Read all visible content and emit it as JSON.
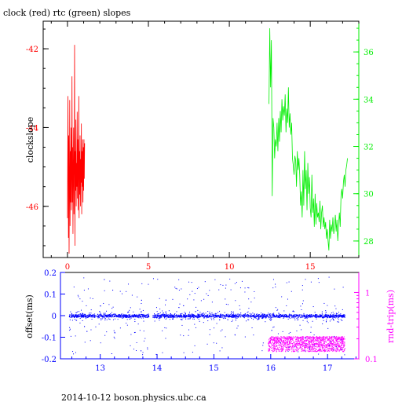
{
  "chart_data": [
    {
      "type": "line",
      "title": "clock (red) rtc (green) slopes",
      "ylabel": "clockslope",
      "xlim": [
        -1.5,
        18
      ],
      "ylim_left": [
        -47.3,
        -41.3
      ],
      "ylim_right": [
        27.3,
        37.3
      ],
      "x_ticks": [
        0,
        5,
        10,
        15
      ],
      "y_ticks_left": [
        -46,
        -44,
        -42
      ],
      "y_ticks_right": [
        28,
        30,
        32,
        34,
        36
      ],
      "colors": {
        "clock": "#ff0000",
        "rtc": "#00ee00",
        "axes": "#000000",
        "right_axis": "#00ee00",
        "left_ticklabels": "#ff0000",
        "bottom_ticklabels": "#ff0000"
      },
      "series": [
        {
          "axis": "left",
          "color": "#ff0000",
          "x": [
            0.0,
            0.03,
            0.06,
            0.08,
            0.1,
            0.12,
            0.14,
            0.16,
            0.18,
            0.2,
            0.22,
            0.24,
            0.26,
            0.28,
            0.3,
            0.32,
            0.34,
            0.36,
            0.38,
            0.4,
            0.42,
            0.44,
            0.46,
            0.48,
            0.5,
            0.52,
            0.54,
            0.56,
            0.58,
            0.6,
            0.62,
            0.64,
            0.66,
            0.68,
            0.7,
            0.72,
            0.74,
            0.76,
            0.78,
            0.8,
            0.82,
            0.84,
            0.86,
            0.88,
            0.9,
            0.92,
            0.94,
            0.96,
            0.98,
            1.0,
            1.02,
            1.04,
            1.06
          ],
          "y": [
            -46.3,
            -43.2,
            -46.8,
            -44.2,
            -47.2,
            -45.5,
            -43.3,
            -46.5,
            -44.6,
            -45.9,
            -44.0,
            -46.1,
            -45.2,
            -42.7,
            -45.9,
            -44.5,
            -46.7,
            -45.0,
            -44.0,
            -46.2,
            -44.7,
            -41.9,
            -47.0,
            -44.6,
            -45.6,
            -43.8,
            -46.0,
            -44.9,
            -45.5,
            -43.6,
            -45.8,
            -44.3,
            -46.1,
            -45.0,
            -43.2,
            -46.3,
            -44.6,
            -45.7,
            -44.2,
            -46.0,
            -44.8,
            -45.4,
            -43.9,
            -46.2,
            -44.6,
            -45.5,
            -44.3,
            -45.9,
            -44.5,
            -45.6,
            -44.3,
            -45.3,
            -44.4
          ]
        },
        {
          "axis": "right",
          "color": "#00ee00",
          "x": [
            12.45,
            12.5,
            12.55,
            12.6,
            12.65,
            12.7,
            12.75,
            12.8,
            12.85,
            12.9,
            12.95,
            13.0,
            13.05,
            13.1,
            13.15,
            13.2,
            13.25,
            13.3,
            13.35,
            13.4,
            13.45,
            13.5,
            13.55,
            13.6,
            13.65,
            13.7,
            13.75,
            13.8,
            13.85,
            13.9,
            13.95,
            14.0,
            14.05,
            14.1,
            14.15,
            14.2,
            14.25,
            14.3,
            14.35,
            14.4,
            14.45,
            14.5,
            14.55,
            14.6,
            14.65,
            14.7,
            14.75,
            14.8,
            14.85,
            14.9,
            14.95,
            15.0,
            15.05,
            15.1,
            15.15,
            15.2,
            15.25,
            15.3,
            15.35,
            15.4,
            15.45,
            15.5,
            15.55,
            15.6,
            15.65,
            15.7,
            15.75,
            15.8,
            15.85,
            15.9,
            15.95,
            16.0,
            16.05,
            16.1,
            16.15,
            16.2,
            16.25,
            16.3,
            16.35,
            16.4,
            16.45,
            16.5,
            16.55,
            16.6,
            16.65,
            16.7,
            16.75,
            16.8,
            16.85,
            16.9,
            16.95,
            17.0,
            17.05,
            17.1,
            17.15,
            17.2,
            17.25,
            17.3
          ],
          "y": [
            33.8,
            37.0,
            34.5,
            36.5,
            29.9,
            33.2,
            32.8,
            31.5,
            32.3,
            32.0,
            33.0,
            31.8,
            33.2,
            32.2,
            33.5,
            32.6,
            34.0,
            33.1,
            33.7,
            33.3,
            34.2,
            32.6,
            33.6,
            33.0,
            34.5,
            32.8,
            33.4,
            32.5,
            33.0,
            31.5,
            31.2,
            30.8,
            31.6,
            31.4,
            30.3,
            31.8,
            31.0,
            31.5,
            30.8,
            29.5,
            30.1,
            29.0,
            31.0,
            29.5,
            31.8,
            30.2,
            31.0,
            29.3,
            31.3,
            30.0,
            30.7,
            29.4,
            29.0,
            30.8,
            29.2,
            29.8,
            28.6,
            30.0,
            28.7,
            29.6,
            29.0,
            29.2,
            28.8,
            29.7,
            28.5,
            29.2,
            29.5,
            28.6,
            29.0,
            28.5,
            28.8,
            28.1,
            28.5,
            28.0,
            27.6,
            28.9,
            28.1,
            28.7,
            28.4,
            29.0,
            28.3,
            28.6,
            29.1,
            28.4,
            28.9,
            28.0,
            28.7,
            29.2,
            28.6,
            29.9,
            30.2,
            29.8,
            30.5,
            30.8,
            30.3,
            31.0,
            31.2,
            31.5
          ]
        }
      ]
    },
    {
      "type": "scatter",
      "ylabel_left": "offset(ms)",
      "ylabel_right": "rnd-trip(ms)",
      "xlim": [
        12.3,
        17.55
      ],
      "ylim_left": [
        -0.2,
        0.2
      ],
      "ylim_right_log": [
        0.1,
        2
      ],
      "x_ticks": [
        13,
        14,
        15,
        16,
        17
      ],
      "y_ticks_left": [
        "0.2",
        "0.1",
        "0",
        "-0.1",
        "-0.2"
      ],
      "y_ticks_right": [
        "1",
        "0.1"
      ],
      "y_tick_values_left": [
        0.2,
        0.1,
        0,
        -0.1,
        -0.2
      ],
      "y_tick_values_right": [
        1,
        0.1
      ],
      "colors": {
        "offset": "#0000ff",
        "roundtrip": "#ff00ff",
        "left_axis": "#0000ff",
        "right_axis": "#ff00ff"
      },
      "series": [
        {
          "color": "#0000ff",
          "x_range": [
            12.45,
            17.3
          ],
          "gap": [
            13.85,
            13.92
          ],
          "center": 0.0,
          "band": 0.012,
          "scatter": 0.18
        },
        {
          "color": "#ff00ff",
          "x_range": [
            15.95,
            17.3
          ],
          "center": 0.17,
          "band_low": 0.13,
          "band_high": 0.22
        }
      ]
    }
  ],
  "footer": "2014-10-12 boson.physics.ubc.ca"
}
